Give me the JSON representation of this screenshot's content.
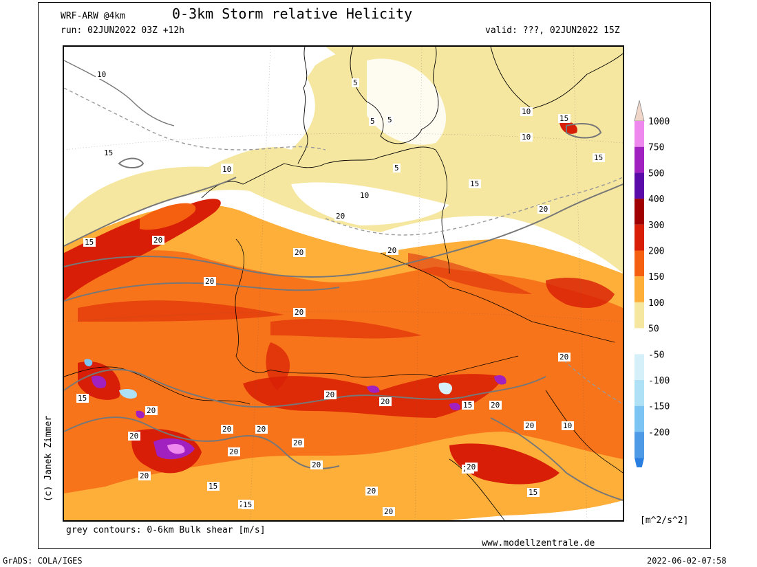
{
  "header": {
    "model": "WRF-ARW @4km",
    "title": "0-3km Storm relative Helicity",
    "run": "run: 02JUN2022 03Z +12h",
    "valid": "valid: ???, 02JUN2022 15Z"
  },
  "footer": {
    "contours_note": "grey contours: 0-6km Bulk shear [m/s]",
    "website": "www.modellzentrale.de",
    "grads": "GrADS: COLA/IGES",
    "timestamp": "2022-06-02-07:58",
    "copyright": "(c) Janek Zimmer"
  },
  "colorbar": {
    "unit": "[m^2/s^2]",
    "levels": [
      {
        "label": "1000",
        "color": "#f0d6c8"
      },
      {
        "label": "750",
        "color": "#ee88ee"
      },
      {
        "label": "500",
        "color": "#a020c0"
      },
      {
        "label": "400",
        "color": "#5a0aa8"
      },
      {
        "label": "300",
        "color": "#a00000"
      },
      {
        "label": "200",
        "color": "#d81e06"
      },
      {
        "label": "150",
        "color": "#f56010"
      },
      {
        "label": "100",
        "color": "#fdaf3a"
      },
      {
        "label": "50",
        "color": "#f5e6a0"
      },
      {
        "label": "-50",
        "color": "#ffffff"
      },
      {
        "label": "-100",
        "color": "#d6f0fa"
      },
      {
        "label": "-150",
        "color": "#aee0f6"
      },
      {
        "label": "-200",
        "color": "#7cc4f4"
      }
    ],
    "extra_colors": [
      "#4f9ae6",
      "#2a7ee0"
    ]
  },
  "contour_labels": [
    "10",
    "5",
    "15",
    "5",
    "5",
    "10",
    "5",
    "10",
    "15",
    "5",
    "10",
    "10",
    "15",
    "10",
    "15",
    "15",
    "20",
    "20",
    "15",
    "20",
    "20",
    "20",
    "20",
    "20",
    "15",
    "20",
    "20",
    "20",
    "20",
    "20",
    "20",
    "20",
    "20",
    "20",
    "15",
    "20",
    "20",
    "20",
    "15",
    "10",
    "20",
    "20",
    "20",
    "20",
    "20",
    "20",
    "15",
    "15"
  ]
}
